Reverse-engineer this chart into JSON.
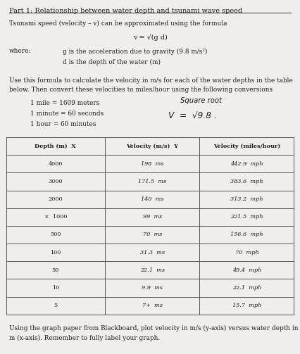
{
  "title_line1": "Part 1: Relationship between water depth and tsunami wave speed",
  "title_line2": "Tsunami speed (velocity – v) can be approximated using the formula",
  "formula": "v = √(g d)",
  "where_label": "where:",
  "where_g": "g is the acceleration due to gravity (9.8 m/s²)",
  "where_d": "d is the depth of the water (m)",
  "para1": "Use this formula to calculate the velocity in m/s for each of the water depths in the table",
  "para2": "below. Then convert these velocities to miles/hour using the following conversions",
  "conv1": "1 mile = 1609 meters",
  "conv2": "1 minute = 60 seconds",
  "conv3": "1 hour = 60 minutes",
  "handwritten1": "Square root",
  "handwritten2": "V  =  √9.8 .",
  "col_headers": [
    "Depth (m)  X",
    "Velocity (m/s)  Y",
    "Velocity (miles/hour)"
  ],
  "rows": [
    [
      "4000",
      "198  ms",
      "442.9  mph"
    ],
    [
      "3000",
      "171.5  ms",
      "383.6  mph"
    ],
    [
      "2000",
      "140  ms",
      "313.2  mph"
    ],
    [
      "×  1000",
      "99  ms",
      "221.5  mph"
    ],
    [
      "500",
      "70  ms",
      "156.6  mph"
    ],
    [
      "100",
      "31.3  ms",
      "70  mph"
    ],
    [
      "50",
      "22.1  ms",
      "49.4  mph"
    ],
    [
      "10",
      "9.9  ms",
      "22.1  mph"
    ],
    [
      "5",
      "7+  ms",
      "15.7  mph"
    ]
  ],
  "footer1": "Using the graph paper from Blackboard, plot velocity in m/s (y-axis) versus water depth in",
  "footer2": "m (x-axis). Remember to fully label your graph.",
  "bg_color": "#f0eeea",
  "text_color": "#1a1a1a",
  "table_line_color": "#555555"
}
